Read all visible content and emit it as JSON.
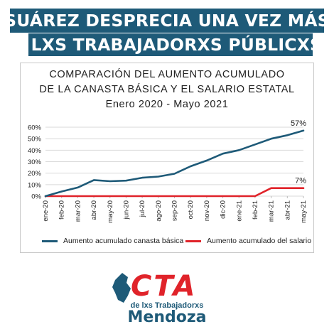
{
  "headline": {
    "line1": "SUÁREZ DESPRECIA UNA VEZ MÁS",
    "line2": "A LXS TRABAJADORXS PÚBLICXS"
  },
  "colors": {
    "headline_bg": "#1e5a78",
    "series_basket": "#1e5a78",
    "series_salary": "#e0232a",
    "logo_red": "#e0232a",
    "logo_blue": "#1e5a78"
  },
  "chart_data": {
    "type": "line",
    "title": "COMPARACIÓN DEL AUMENTO ACUMULADO",
    "title_line2": "DE LA CANASTA BÁSICA Y EL SALARIO ESTATAL",
    "subtitle": "Enero 2020 - Mayo 2021",
    "x": [
      "ene-20",
      "feb-20",
      "mar-20",
      "abr-20",
      "may-20",
      "jun-20",
      "jul-20",
      "ago-20",
      "sep-20",
      "oct-20",
      "nov-20",
      "dic-20",
      "ene-21",
      "feb-21",
      "mar-21",
      "abr-21",
      "may-21"
    ],
    "ylim": [
      0,
      60
    ],
    "yticks": [
      "0%",
      "10%",
      "20%",
      "30%",
      "40%",
      "50%",
      "60%"
    ],
    "grid": true,
    "legend_position": "bottom",
    "series": [
      {
        "name": "Aumento acumulado canasta básica",
        "values": [
          0,
          4,
          7.5,
          14,
          13,
          13.5,
          16,
          17,
          19.5,
          26,
          31,
          37,
          40,
          45,
          50,
          53,
          57
        ],
        "end_label": "57%"
      },
      {
        "name": "Aumento acumulado del salario",
        "values": [
          0,
          0,
          0,
          0,
          0,
          0,
          0,
          0,
          0,
          0,
          0,
          0,
          0,
          0,
          7,
          7,
          7
        ],
        "end_label": "7%"
      }
    ]
  },
  "logo": {
    "wordmark": "CTA",
    "subtitle": "de lxs Trabajadorxs",
    "city": "Mendoza"
  }
}
